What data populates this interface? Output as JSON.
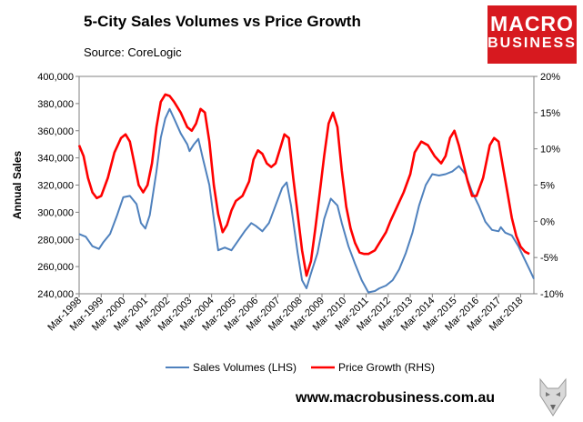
{
  "header": {
    "title": "5-City Sales Volumes vs Price Growth",
    "source": "Source: CoreLogic"
  },
  "logo": {
    "line1": "MACRO",
    "line2": "BUSINESS",
    "bg": "#d7191f"
  },
  "footer": {
    "url": "www.macrobusiness.com.au"
  },
  "chart_data": {
    "type": "line",
    "title": "5-City Sales Volumes vs Price Growth",
    "ylabel": "Annual Sales",
    "xlabel": "",
    "ylim_left": [
      240000,
      400000
    ],
    "ylim_right": [
      -10,
      20
    ],
    "left_ticks": [
      "400,000",
      "380,000",
      "360,000",
      "340,000",
      "320,000",
      "300,000",
      "280,000",
      "260,000",
      "240,000"
    ],
    "right_ticks": [
      "20%",
      "15%",
      "10%",
      "5%",
      "0%",
      "-5%",
      "-10%"
    ],
    "x_ticks": [
      "Mar-1998",
      "Mar-1999",
      "Mar-2000",
      "Mar-2001",
      "Mar-2002",
      "Mar-2003",
      "Mar-2004",
      "Mar-2005",
      "Mar-2006",
      "Mar-2007",
      "Mar-2008",
      "Mar-2009",
      "Mar-2010",
      "Mar-2011",
      "Mar-2012",
      "Mar-2013",
      "Mar-2014",
      "Mar-2015",
      "Mar-2016",
      "Mar-2017",
      "Mar-2018"
    ],
    "x_range": [
      1998,
      2018.6
    ],
    "legend_position": "bottom",
    "series": [
      {
        "name": "Sales Volumes (LHS)",
        "axis": "left",
        "color": "#4f81bd",
        "points": [
          [
            1998.0,
            284000
          ],
          [
            1998.3,
            282000
          ],
          [
            1998.6,
            275000
          ],
          [
            1998.9,
            273000
          ],
          [
            1999.1,
            278000
          ],
          [
            1999.4,
            284000
          ],
          [
            1999.7,
            297000
          ],
          [
            2000.0,
            311000
          ],
          [
            2000.3,
            312000
          ],
          [
            2000.6,
            306000
          ],
          [
            2000.8,
            292000
          ],
          [
            2001.0,
            288000
          ],
          [
            2001.2,
            298000
          ],
          [
            2001.5,
            330000
          ],
          [
            2001.7,
            355000
          ],
          [
            2001.9,
            369000
          ],
          [
            2002.1,
            376000
          ],
          [
            2002.3,
            369000
          ],
          [
            2002.6,
            358000
          ],
          [
            2002.9,
            350000
          ],
          [
            2003.0,
            345000
          ],
          [
            2003.2,
            350000
          ],
          [
            2003.4,
            354000
          ],
          [
            2003.6,
            340000
          ],
          [
            2003.9,
            320000
          ],
          [
            2004.1,
            295000
          ],
          [
            2004.3,
            272000
          ],
          [
            2004.6,
            274000
          ],
          [
            2004.9,
            272000
          ],
          [
            2005.2,
            279000
          ],
          [
            2005.5,
            286000
          ],
          [
            2005.8,
            292000
          ],
          [
            2006.0,
            290000
          ],
          [
            2006.3,
            286000
          ],
          [
            2006.6,
            292000
          ],
          [
            2006.9,
            305000
          ],
          [
            2007.2,
            318000
          ],
          [
            2007.4,
            322000
          ],
          [
            2007.6,
            305000
          ],
          [
            2007.9,
            270000
          ],
          [
            2008.1,
            250000
          ],
          [
            2008.3,
            244000
          ],
          [
            2008.5,
            255000
          ],
          [
            2008.8,
            270000
          ],
          [
            2009.1,
            295000
          ],
          [
            2009.4,
            310000
          ],
          [
            2009.7,
            305000
          ],
          [
            2009.9,
            292000
          ],
          [
            2010.2,
            275000
          ],
          [
            2010.5,
            262000
          ],
          [
            2010.8,
            250000
          ],
          [
            2011.1,
            241000
          ],
          [
            2011.4,
            242000
          ],
          [
            2011.6,
            244000
          ],
          [
            2011.9,
            246000
          ],
          [
            2012.2,
            250000
          ],
          [
            2012.5,
            258000
          ],
          [
            2012.8,
            270000
          ],
          [
            2013.1,
            285000
          ],
          [
            2013.4,
            305000
          ],
          [
            2013.7,
            320000
          ],
          [
            2014.0,
            328000
          ],
          [
            2014.3,
            327000
          ],
          [
            2014.6,
            328000
          ],
          [
            2014.9,
            330000
          ],
          [
            2015.2,
            334000
          ],
          [
            2015.5,
            328000
          ],
          [
            2015.8,
            315000
          ],
          [
            2016.1,
            305000
          ],
          [
            2016.4,
            293000
          ],
          [
            2016.7,
            287000
          ],
          [
            2017.0,
            286000
          ],
          [
            2017.1,
            289000
          ],
          [
            2017.3,
            285000
          ],
          [
            2017.6,
            283000
          ],
          [
            2017.9,
            275000
          ],
          [
            2018.1,
            268000
          ],
          [
            2018.4,
            258000
          ],
          [
            2018.6,
            251000
          ]
        ]
      },
      {
        "name": "Price Growth (RHS)",
        "axis": "right",
        "color": "#ff0000",
        "points": [
          [
            1998.0,
            10.5
          ],
          [
            1998.2,
            9.0
          ],
          [
            1998.4,
            6.0
          ],
          [
            1998.6,
            4.0
          ],
          [
            1998.8,
            3.2
          ],
          [
            1999.0,
            3.5
          ],
          [
            1999.3,
            6.0
          ],
          [
            1999.6,
            9.5
          ],
          [
            1999.9,
            11.5
          ],
          [
            2000.1,
            12.0
          ],
          [
            2000.3,
            11.0
          ],
          [
            2000.5,
            8.0
          ],
          [
            2000.7,
            5.0
          ],
          [
            2000.9,
            4.0
          ],
          [
            2001.1,
            5.0
          ],
          [
            2001.3,
            8.0
          ],
          [
            2001.5,
            13.0
          ],
          [
            2001.7,
            16.5
          ],
          [
            2001.9,
            17.5
          ],
          [
            2002.1,
            17.3
          ],
          [
            2002.3,
            16.5
          ],
          [
            2002.6,
            15.0
          ],
          [
            2002.9,
            13.0
          ],
          [
            2003.1,
            12.5
          ],
          [
            2003.3,
            13.5
          ],
          [
            2003.5,
            15.5
          ],
          [
            2003.7,
            15.0
          ],
          [
            2003.9,
            11.0
          ],
          [
            2004.1,
            5.0
          ],
          [
            2004.3,
            1.0
          ],
          [
            2004.5,
            -1.5
          ],
          [
            2004.7,
            -0.5
          ],
          [
            2004.9,
            1.5
          ],
          [
            2005.1,
            2.8
          ],
          [
            2005.4,
            3.5
          ],
          [
            2005.7,
            5.5
          ],
          [
            2005.9,
            8.5
          ],
          [
            2006.1,
            9.8
          ],
          [
            2006.3,
            9.3
          ],
          [
            2006.5,
            8.0
          ],
          [
            2006.7,
            7.5
          ],
          [
            2006.9,
            8.0
          ],
          [
            2007.1,
            10.0
          ],
          [
            2007.3,
            12.0
          ],
          [
            2007.5,
            11.5
          ],
          [
            2007.7,
            6.0
          ],
          [
            2007.9,
            1.0
          ],
          [
            2008.1,
            -4.0
          ],
          [
            2008.3,
            -7.5
          ],
          [
            2008.5,
            -5.5
          ],
          [
            2008.7,
            -1.0
          ],
          [
            2008.9,
            4.0
          ],
          [
            2009.1,
            9.0
          ],
          [
            2009.3,
            13.5
          ],
          [
            2009.5,
            15.0
          ],
          [
            2009.7,
            13.0
          ],
          [
            2009.9,
            7.0
          ],
          [
            2010.1,
            2.0
          ],
          [
            2010.3,
            -1.0
          ],
          [
            2010.5,
            -3.0
          ],
          [
            2010.7,
            -4.3
          ],
          [
            2010.9,
            -4.5
          ],
          [
            2011.1,
            -4.5
          ],
          [
            2011.4,
            -4.0
          ],
          [
            2011.6,
            -3.0
          ],
          [
            2011.9,
            -1.5
          ],
          [
            2012.1,
            0.0
          ],
          [
            2012.4,
            2.0
          ],
          [
            2012.7,
            4.0
          ],
          [
            2013.0,
            6.5
          ],
          [
            2013.2,
            9.5
          ],
          [
            2013.5,
            11.0
          ],
          [
            2013.8,
            10.5
          ],
          [
            2014.1,
            9.0
          ],
          [
            2014.4,
            8.0
          ],
          [
            2014.6,
            9.0
          ],
          [
            2014.8,
            11.5
          ],
          [
            2015.0,
            12.5
          ],
          [
            2015.2,
            10.5
          ],
          [
            2015.4,
            8.0
          ],
          [
            2015.6,
            5.5
          ],
          [
            2015.8,
            3.5
          ],
          [
            2016.0,
            3.5
          ],
          [
            2016.3,
            6.0
          ],
          [
            2016.6,
            10.5
          ],
          [
            2016.8,
            11.5
          ],
          [
            2017.0,
            11.0
          ],
          [
            2017.2,
            7.5
          ],
          [
            2017.4,
            4.0
          ],
          [
            2017.6,
            0.5
          ],
          [
            2017.8,
            -2.0
          ],
          [
            2018.0,
            -3.5
          ],
          [
            2018.2,
            -4.2
          ],
          [
            2018.4,
            -4.5
          ]
        ]
      }
    ]
  }
}
